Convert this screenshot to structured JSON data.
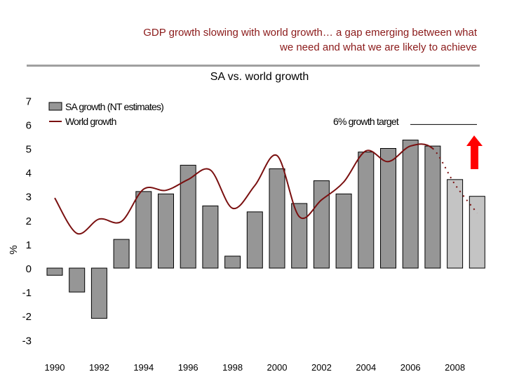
{
  "header": {
    "title_line1": "GDP growth slowing with world growth… a gap emerging between what",
    "title_line2": "we need and what we are likely to achieve"
  },
  "chart_data": {
    "type": "bar",
    "title": "SA vs. world growth",
    "ylabel": "%",
    "ylim": [
      -3,
      7
    ],
    "yticks": [
      "-3",
      "-2",
      "-1",
      "0",
      "1",
      "2",
      "3",
      "4",
      "5",
      "6",
      "7"
    ],
    "categories": [
      "1990",
      "1991",
      "1992",
      "1993",
      "1994",
      "1995",
      "1996",
      "1997",
      "1998",
      "1999",
      "2000",
      "2001",
      "2002",
      "2003",
      "2004",
      "2005",
      "2006",
      "2007",
      "2008",
      "2009"
    ],
    "xtick_labels": [
      "1990",
      "1992",
      "1994",
      "1996",
      "1998",
      "2000",
      "2002",
      "2004",
      "2006",
      "2008"
    ],
    "series": [
      {
        "name": "SA growth (NT estimates)",
        "type": "bar",
        "color": "#969696",
        "forecast_color": "#c4c4c4",
        "forecast_from": "2008",
        "values": [
          -0.3,
          -1.0,
          -2.1,
          1.2,
          3.2,
          3.1,
          4.3,
          2.6,
          0.5,
          2.35,
          4.15,
          2.7,
          3.65,
          3.1,
          4.85,
          5.0,
          5.35,
          5.1,
          3.7,
          3.0
        ]
      },
      {
        "name": "World growth",
        "type": "line",
        "color": "#7a1010",
        "dotted_from": "2007",
        "values": [
          2.93,
          1.45,
          2.05,
          1.95,
          3.3,
          3.25,
          3.7,
          4.1,
          2.5,
          3.45,
          4.7,
          2.15,
          2.85,
          3.6,
          4.9,
          4.45,
          5.1,
          5.0,
          3.5,
          2.3
        ]
      }
    ],
    "annotation": {
      "label": "6% growth target",
      "value": 6,
      "arrow_color": "#ff0000"
    },
    "legend": "top-left",
    "grid": false
  }
}
